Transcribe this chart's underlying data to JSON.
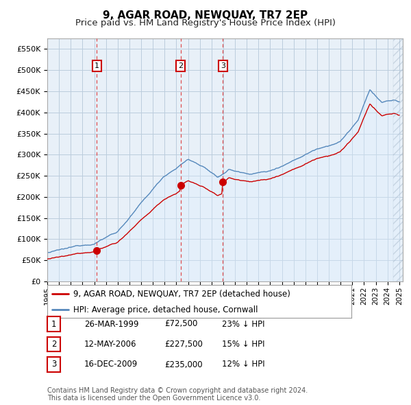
{
  "title": "9, AGAR ROAD, NEWQUAY, TR7 2EP",
  "subtitle": "Price paid vs. HM Land Registry's House Price Index (HPI)",
  "ylim": [
    0,
    575000
  ],
  "yticks": [
    0,
    50000,
    100000,
    150000,
    200000,
    250000,
    300000,
    350000,
    400000,
    450000,
    500000,
    550000
  ],
  "ytick_labels": [
    "£0",
    "£50K",
    "£100K",
    "£150K",
    "£200K",
    "£250K",
    "£300K",
    "£350K",
    "£400K",
    "£450K",
    "£500K",
    "£550K"
  ],
  "sale_dates_decimal": [
    1999.23,
    2006.36,
    2009.96
  ],
  "sale_prices": [
    72500,
    227500,
    235000
  ],
  "sale_labels": [
    "1",
    "2",
    "3"
  ],
  "red_line_color": "#cc0000",
  "blue_line_color": "#5588bb",
  "blue_fill_color": "#ddeeff",
  "grid_color": "#bbccdd",
  "background_color": "#e8f0f8",
  "vline_color": "#dd3333",
  "marker_box_color": "#cc0000",
  "legend_line1": "9, AGAR ROAD, NEWQUAY, TR7 2EP (detached house)",
  "legend_line2": "HPI: Average price, detached house, Cornwall",
  "table_rows": [
    [
      "1",
      "26-MAR-1999",
      "£72,500",
      "23% ↓ HPI"
    ],
    [
      "2",
      "12-MAY-2006",
      "£227,500",
      "15% ↓ HPI"
    ],
    [
      "3",
      "16-DEC-2009",
      "£235,000",
      "12% ↓ HPI"
    ]
  ],
  "footnote": "Contains HM Land Registry data © Crown copyright and database right 2024.\nThis data is licensed under the Open Government Licence v3.0.",
  "title_fontsize": 11,
  "subtitle_fontsize": 9.5,
  "tick_fontsize": 8,
  "legend_fontsize": 8.5,
  "table_fontsize": 8.5,
  "footnote_fontsize": 7
}
